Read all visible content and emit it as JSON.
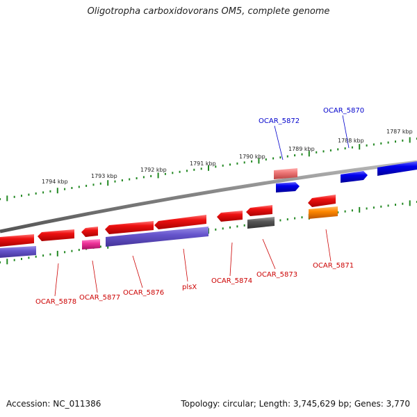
{
  "title": "Oligotropha carboxidovorans OM5, complete genome",
  "footer": {
    "accession": "Accession: NC_011386",
    "topology": "Topology: circular; Length: 3,745,629 bp; Genes: 3,770"
  },
  "scale_labels": [
    "1794 kbp",
    "1793 kbp",
    "1792 kbp",
    "1791 kbp",
    "1790 kbp",
    "1789 kbp",
    "1788 kbp",
    "1787 kbp"
  ],
  "gene_labels_top": [
    "OCAR_5872",
    "OCAR_5870"
  ],
  "gene_labels_bottom": [
    "OCAR_5878",
    "OCAR_5877",
    "OCAR_5876",
    "plsX",
    "OCAR_5874",
    "OCAR_5873",
    "OCAR_5871"
  ],
  "colors": {
    "cds_red": "#ee1111",
    "cds_blue": "#0000ee",
    "pink": "#ee4499",
    "purple": "#6655cc",
    "orange": "#ff8800",
    "salmon": "#ee7777",
    "gray": "#555555",
    "backbone": "#808080",
    "tick_green": "#228822",
    "label_blue": "#0000cc",
    "label_red": "#cc0000"
  }
}
